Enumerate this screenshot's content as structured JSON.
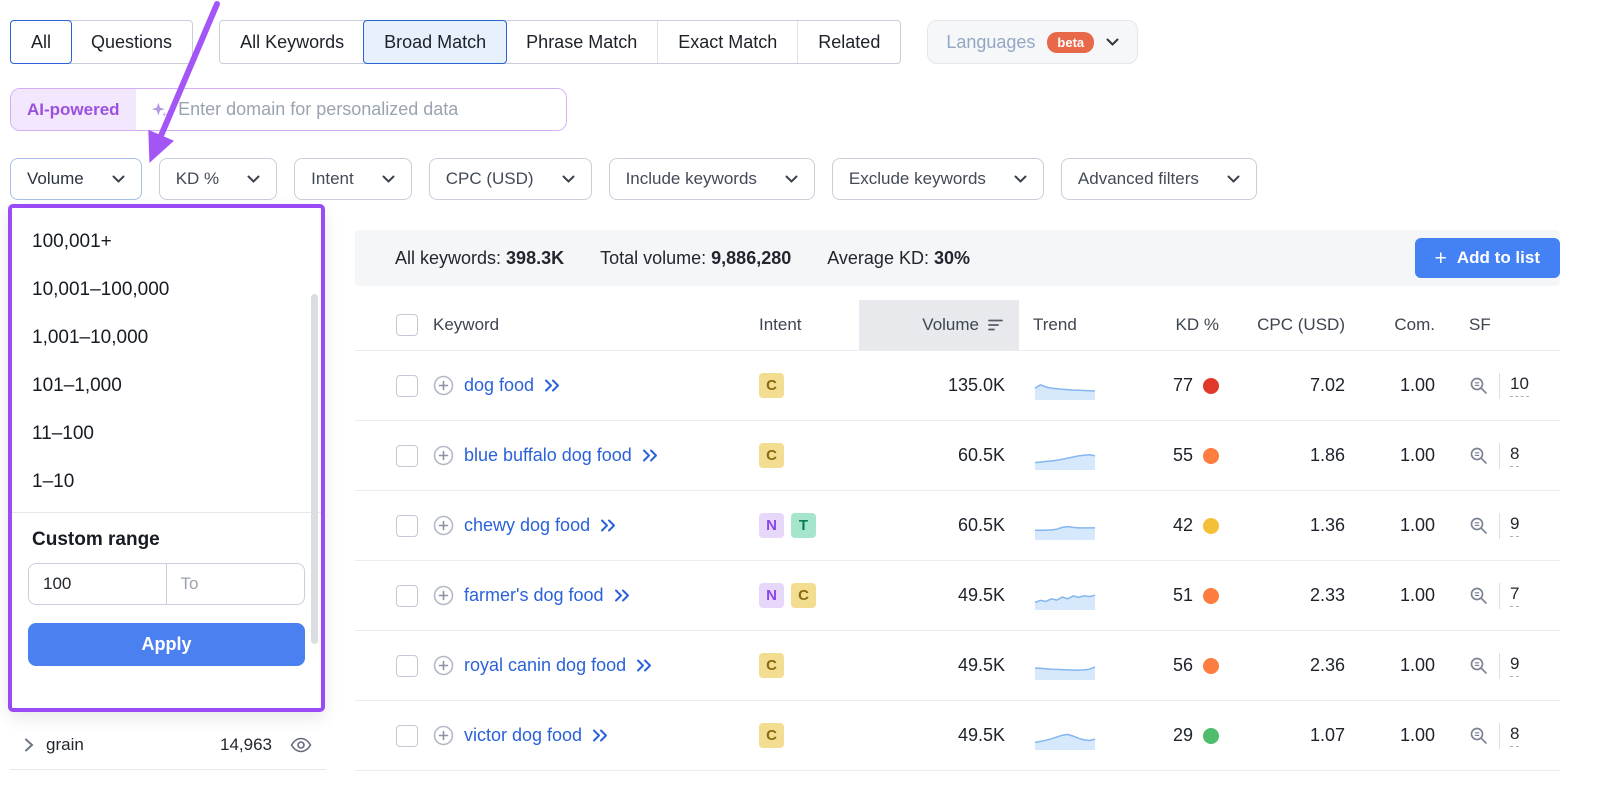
{
  "colors": {
    "accent_blue": "#2d64d4",
    "button_blue": "#4381f5",
    "apply_blue": "#4b80f0",
    "annotation_purple": "#9b4bf5",
    "link_blue": "#2b62d9",
    "beta_orange": "#e8684a",
    "summary_bg": "#f5f6f8",
    "volume_header_bg": "#e7e9ed"
  },
  "tabs": {
    "group1": [
      {
        "label": "All",
        "selected": true
      },
      {
        "label": "Questions",
        "selected": false
      }
    ],
    "group2": [
      {
        "label": "All Keywords",
        "selected": false
      },
      {
        "label": "Broad Match",
        "selected": true
      },
      {
        "label": "Phrase Match",
        "selected": false
      },
      {
        "label": "Exact Match",
        "selected": false
      },
      {
        "label": "Related",
        "selected": false
      }
    ],
    "languages": {
      "label": "Languages",
      "badge": "beta"
    }
  },
  "ai_bar": {
    "badge": "AI-powered",
    "placeholder": "Enter domain for personalized data"
  },
  "filters": [
    {
      "label": "Volume",
      "open": true
    },
    {
      "label": "KD %",
      "open": false
    },
    {
      "label": "Intent",
      "open": false
    },
    {
      "label": "CPC (USD)",
      "open": false
    },
    {
      "label": "Include keywords",
      "open": false
    },
    {
      "label": "Exclude keywords",
      "open": false
    },
    {
      "label": "Advanced filters",
      "open": false
    }
  ],
  "volume_dropdown": {
    "options": [
      "100,001+",
      "10,001–100,000",
      "1,001–10,000",
      "101–1,000",
      "11–100",
      "1–10"
    ],
    "custom_range_label": "Custom range",
    "from_value": "100",
    "to_placeholder": "To",
    "apply_label": "Apply"
  },
  "groups_list": {
    "item": "grain",
    "count": "14,963"
  },
  "summary": [
    {
      "label": "All keywords:",
      "value": "398.3K"
    },
    {
      "label": "Total volume:",
      "value": "9,886,280"
    },
    {
      "label": "Average KD:",
      "value": "30%"
    }
  ],
  "add_to_list": {
    "label": "Add to list"
  },
  "intent_styles": {
    "C": {
      "name": "commercial",
      "bg": "#f2dd90",
      "fg": "#8a6a10"
    },
    "N": {
      "name": "navigational",
      "bg": "#e7d8fb",
      "fg": "#8b46e8"
    },
    "T": {
      "name": "transactional",
      "bg": "#a5e5cb",
      "fg": "#0a7d57"
    }
  },
  "table": {
    "headers": {
      "keyword": "Keyword",
      "intent": "Intent",
      "volume": "Volume",
      "trend": "Trend",
      "kd": "KD %",
      "cpc": "CPC (USD)",
      "com": "Com.",
      "sf": "SF"
    },
    "rows": [
      {
        "keyword": "dog food",
        "intents": [
          "C"
        ],
        "volume": "135.0K",
        "trend": [
          4.5,
          6,
          5,
          4.5,
          4.2,
          4,
          3.8,
          3.6,
          3.5,
          3.4,
          3.3,
          3.2
        ],
        "kd": "77",
        "kd_color": "#e0392b",
        "cpc": "7.02",
        "com": "1.00",
        "sf": "10"
      },
      {
        "keyword": "blue buffalo dog food",
        "intents": [
          "C"
        ],
        "volume": "60.5K",
        "trend": [
          2.5,
          2.7,
          3,
          3.2,
          3.5,
          4,
          4.5,
          5,
          5.5,
          5.8,
          6,
          5.6
        ],
        "kd": "55",
        "kd_color": "#fd7c3f",
        "cpc": "1.86",
        "com": "1.00",
        "sf": "8"
      },
      {
        "keyword": "chewy dog food",
        "intents": [
          "N",
          "T"
        ],
        "volume": "60.5K",
        "trend": [
          3.5,
          3.5,
          3.6,
          3.7,
          4,
          4.8,
          5.2,
          4.8,
          4.6,
          4.6,
          4.6,
          4.6
        ],
        "kd": "42",
        "kd_color": "#f5c037",
        "cpc": "1.36",
        "com": "1.00",
        "sf": "9"
      },
      {
        "keyword": "farmer's dog food",
        "intents": [
          "N",
          "C"
        ],
        "volume": "49.5K",
        "trend": [
          2.5,
          3.5,
          3,
          4.2,
          3.6,
          5,
          4.2,
          5.5,
          4.8,
          5.6,
          5.2,
          5.8
        ],
        "kd": "51",
        "kd_color": "#fd7c3f",
        "cpc": "2.33",
        "com": "1.00",
        "sf": "7"
      },
      {
        "keyword": "royal canin dog food",
        "intents": [
          "C"
        ],
        "volume": "49.5K",
        "trend": [
          4.5,
          4.4,
          4.2,
          4,
          3.9,
          3.8,
          3.7,
          3.6,
          3.6,
          3.7,
          4,
          5
        ],
        "kd": "56",
        "kd_color": "#fd7c3f",
        "cpc": "2.36",
        "com": "1.00",
        "sf": "9"
      },
      {
        "keyword": "victor dog food",
        "intents": [
          "C"
        ],
        "volume": "49.5K",
        "trend": [
          2.5,
          3,
          3.5,
          4.2,
          5,
          5.8,
          6.2,
          5.4,
          4.4,
          3.7,
          3.4,
          4
        ],
        "kd": "29",
        "kd_color": "#4fbe6c",
        "cpc": "1.07",
        "com": "1.00",
        "sf": "8"
      }
    ]
  }
}
